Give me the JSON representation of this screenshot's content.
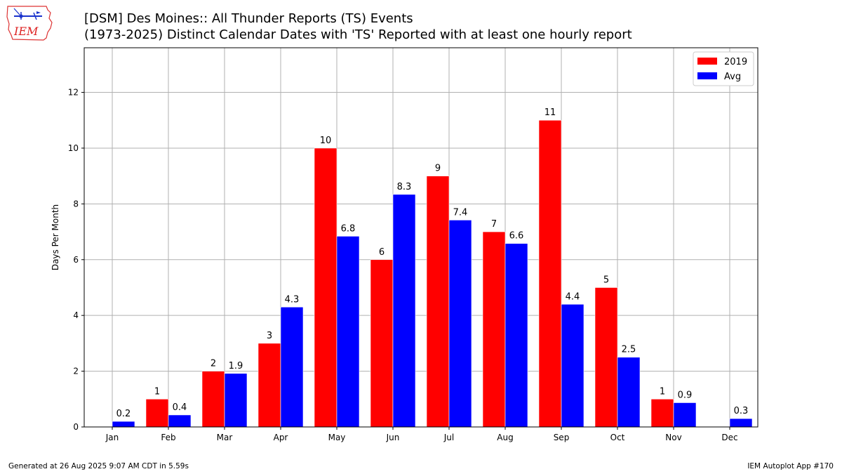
{
  "header": {
    "title_line1": "[DSM] Des Moines:: All Thunder Reports (TS) Events",
    "title_line2": "(1973-2025) Distinct Calendar Dates with 'TS' Reported with at least one hourly report",
    "logo_text": "IEM"
  },
  "footer": {
    "left": "Generated at 26 Aug 2025 9:07 AM CDT in 5.59s",
    "right": "IEM Autoplot App #170"
  },
  "chart_data": {
    "type": "bar",
    "categories": [
      "Jan",
      "Feb",
      "Mar",
      "Apr",
      "May",
      "Jun",
      "Jul",
      "Aug",
      "Sep",
      "Oct",
      "Nov",
      "Dec"
    ],
    "series": [
      {
        "name": "2019",
        "color": "#ff0000",
        "values": [
          0,
          1,
          2,
          3,
          10,
          6,
          9,
          7,
          11,
          5,
          1,
          0
        ],
        "labels": [
          "",
          "1",
          "2",
          "3",
          "10",
          "6",
          "9",
          "7",
          "11",
          "5",
          "1",
          ""
        ]
      },
      {
        "name": "Avg",
        "color": "#0000ff",
        "values": [
          0.2,
          0.43,
          1.92,
          4.3,
          6.84,
          8.34,
          7.42,
          6.58,
          4.4,
          2.5,
          0.87,
          0.3
        ],
        "labels": [
          "0.2",
          "0.4",
          "1.9",
          "4.3",
          "6.8",
          "8.3",
          "7.4",
          "6.6",
          "4.4",
          "2.5",
          "0.9",
          "0.3"
        ]
      }
    ],
    "ylabel": "Days Per Month",
    "xlabel": "",
    "ylim": [
      0,
      13.6
    ],
    "yticks": [
      0,
      2,
      4,
      6,
      8,
      10,
      12
    ],
    "ytick_labels": [
      "0",
      "2",
      "4",
      "6",
      "8",
      "10",
      "12"
    ],
    "grid": true,
    "legend_position": "top-right"
  }
}
